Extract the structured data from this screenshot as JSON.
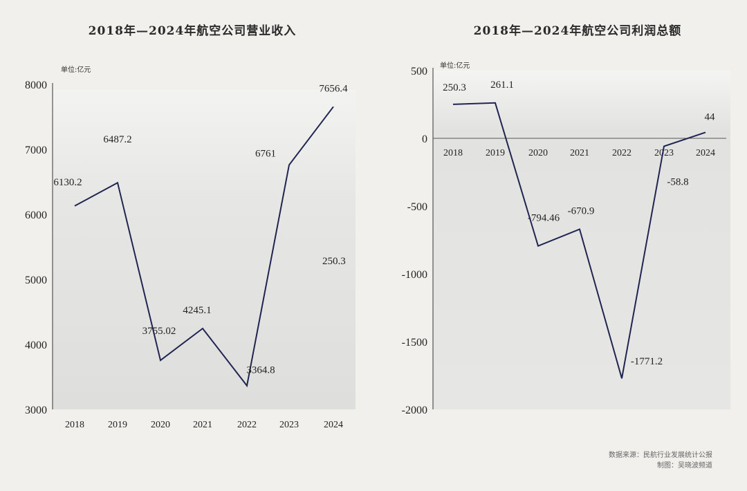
{
  "chart_data": [
    {
      "type": "line",
      "title": "2018年—2024年航空公司营业收入",
      "unit_label": "单位:亿元",
      "categories": [
        "2018",
        "2019",
        "2020",
        "2021",
        "2022",
        "2023",
        "2024"
      ],
      "values": [
        6130.2,
        6487.2,
        3755.02,
        4245.1,
        3364.8,
        6761,
        7656.4
      ],
      "data_labels": [
        "6130.2",
        "6487.2",
        "3755.02",
        "4245.1",
        "3364.8",
        "6761",
        "7656.4"
      ],
      "extra_label": "250.3",
      "yticks": [
        "3000",
        "4000",
        "5000",
        "6000",
        "7000",
        "8000"
      ],
      "ylim": [
        3000,
        8000
      ],
      "line_color": "#1f2450"
    },
    {
      "type": "line",
      "title": "2018年—2024年航空公司利润总额",
      "unit_label": "单位:亿元",
      "categories": [
        "2018",
        "2019",
        "2020",
        "2021",
        "2022",
        "2023",
        "2024"
      ],
      "values": [
        250.3,
        261.1,
        -794.46,
        -670.9,
        -1771.2,
        -58.8,
        44
      ],
      "data_labels": [
        "250.3",
        "261.1",
        "-794.46",
        "-670.9",
        "-1771.2",
        "-58.8",
        "44"
      ],
      "yticks": [
        "500",
        "0",
        "-500",
        "-1000",
        "-1500",
        "-2000"
      ],
      "ylim": [
        -2000,
        500
      ],
      "line_color": "#1f2450"
    }
  ],
  "source": {
    "line1": "数据来源：民航行业发展统计公报",
    "line2": "制图：吴晓波频道"
  }
}
